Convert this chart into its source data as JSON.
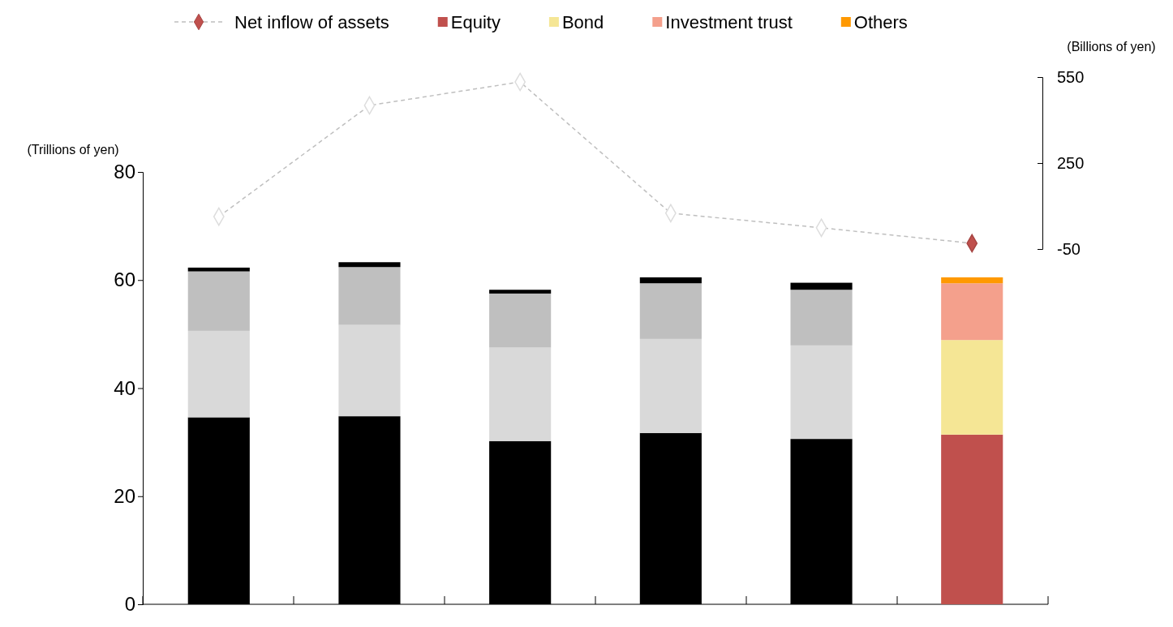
{
  "chart_data": [
    {
      "type": "line",
      "categories": [
        null,
        null,
        null,
        null,
        null,
        null
      ],
      "ylabel": "(Billions of yen)",
      "ylim": [
        -50,
        550
      ],
      "yticks": [
        -50,
        250,
        550
      ],
      "legend": "top",
      "line_style": "dashed",
      "marker": "diamond",
      "series": [
        {
          "name": "Net inflow of assets",
          "color": "#bfbfbf",
          "colors": [
            "#ffffff",
            "#ffffff",
            "#ffffff",
            "#ffffff",
            "#ffffff",
            "#c0504d"
          ],
          "values": [
            63,
            451,
            533,
            75,
            24,
            -30
          ]
        }
      ]
    },
    {
      "type": "bar",
      "stacked": true,
      "categories": [
        null,
        null,
        null,
        null,
        null,
        null
      ],
      "ylabel": "(Trillions of yen)",
      "ylim": [
        0,
        80
      ],
      "yticks": [
        0,
        20,
        40,
        60,
        80
      ],
      "legend": "top",
      "series": [
        {
          "name": "Equity",
          "color": "#c0504d",
          "colors": [
            "#000000",
            "#000000",
            "#000000",
            "#000000",
            "#000000",
            "#c0504d"
          ],
          "values": [
            34.6,
            34.8,
            30.2,
            31.7,
            30.6,
            31.4
          ]
        },
        {
          "name": "Bond",
          "color": "#f5e695",
          "colors": [
            "#d9d9d9",
            "#d9d9d9",
            "#d9d9d9",
            "#d9d9d9",
            "#d9d9d9",
            "#f5e695"
          ],
          "values": [
            16.0,
            16.9,
            17.3,
            17.4,
            17.3,
            17.5
          ]
        },
        {
          "name": "Investment trust",
          "color": "#f4a08c",
          "colors": [
            "#bfbfbf",
            "#bfbfbf",
            "#bfbfbf",
            "#bfbfbf",
            "#bfbfbf",
            "#f4a08c"
          ],
          "values": [
            11.0,
            10.7,
            10.0,
            10.3,
            10.3,
            10.5
          ]
        },
        {
          "name": "Others",
          "color": "#ff9900",
          "colors": [
            "#000000",
            "#000000",
            "#000000",
            "#000000",
            "#000000",
            "#ff9900"
          ],
          "values": [
            0.7,
            0.9,
            0.7,
            1.1,
            1.3,
            1.1
          ]
        }
      ]
    }
  ]
}
